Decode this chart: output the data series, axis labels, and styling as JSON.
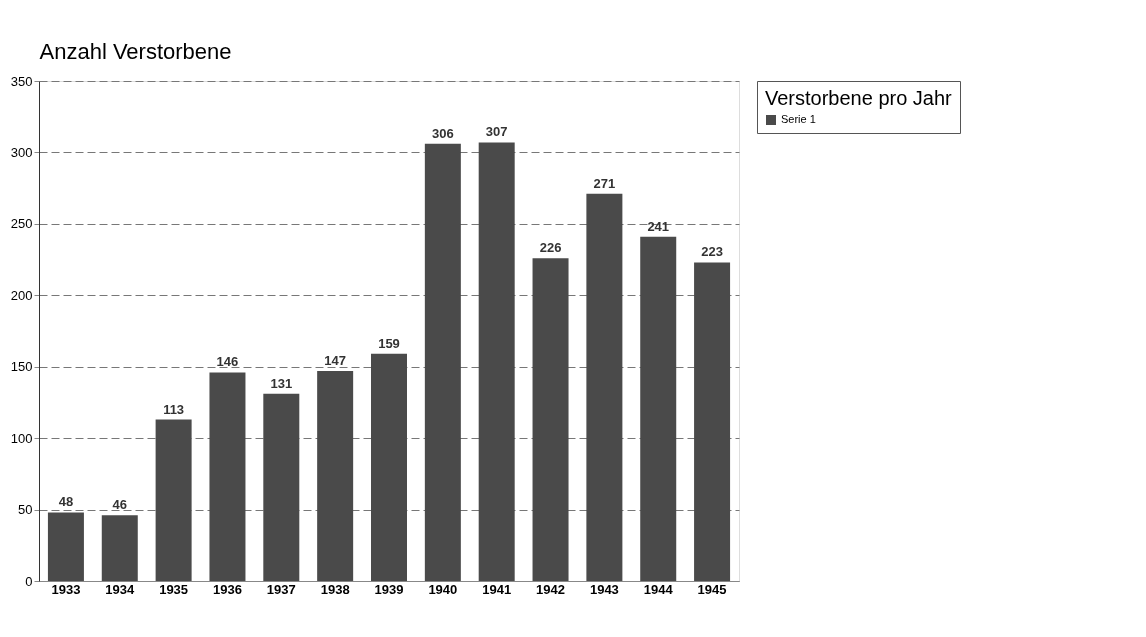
{
  "chart_data": {
    "type": "bar",
    "ylabel": "Anzahl Verstorbene",
    "legend_title": "Verstorbene pro Jahr",
    "categories": [
      "1933",
      "1934",
      "1935",
      "1936",
      "1937",
      "1938",
      "1939",
      "1940",
      "1941",
      "1942",
      "1943",
      "1944",
      "1945"
    ],
    "series": [
      {
        "name": "Serie 1",
        "color": "#4a4a4a",
        "values": [
          48,
          46,
          113,
          146,
          131,
          147,
          159,
          306,
          307,
          226,
          271,
          241,
          223
        ]
      }
    ],
    "ylim": [
      0,
      350
    ],
    "yticks": [
      0,
      50,
      100,
      150,
      200,
      250,
      300,
      350
    ],
    "grid": "y",
    "line_style": "dashed",
    "legend": "right",
    "data_labels": true
  }
}
